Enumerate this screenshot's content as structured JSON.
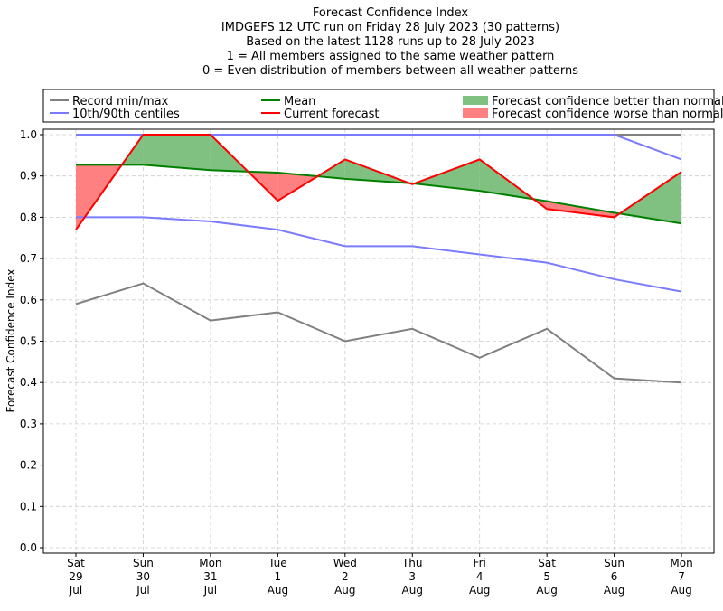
{
  "chart_data": {
    "type": "line",
    "title_lines": [
      "Forecast Confidence Index",
      "IMDGEFS 12 UTC run on Friday 28 July 2023 (30 patterns)",
      "Based on the latest 1128 runs up to 28 July 2023",
      "1 = All members assigned to the same weather pattern",
      "0 = Even distribution of members between all weather patterns"
    ],
    "ylabel": "Forecast Confidence Index",
    "ylim": [
      0,
      1
    ],
    "yticks": [
      "0.0",
      "0.1",
      "0.2",
      "0.3",
      "0.4",
      "0.5",
      "0.6",
      "0.7",
      "0.8",
      "0.9",
      "1.0"
    ],
    "categories": [
      [
        "Sat",
        "29",
        "Jul"
      ],
      [
        "Sun",
        "30",
        "Jul"
      ],
      [
        "Mon",
        "31",
        "Jul"
      ],
      [
        "Tue",
        "1",
        "Aug"
      ],
      [
        "Wed",
        "2",
        "Aug"
      ],
      [
        "Thu",
        "3",
        "Aug"
      ],
      [
        "Fri",
        "4",
        "Aug"
      ],
      [
        "Sat",
        "5",
        "Aug"
      ],
      [
        "Sun",
        "6",
        "Aug"
      ],
      [
        "Mon",
        "7",
        "Aug"
      ]
    ],
    "grid": true,
    "legend_placement": "top, outside",
    "legend": [
      {
        "label": "Record min/max",
        "color": "#808080",
        "kind": "line"
      },
      {
        "label": "10th/90th centiles",
        "color": "#7b7bff",
        "kind": "line"
      },
      {
        "label": "Mean",
        "color": "#008000",
        "kind": "line"
      },
      {
        "label": "Current forecast",
        "color": "#ff0000",
        "kind": "line"
      },
      {
        "label": "Forecast confidence better than normal",
        "color": "#80c080",
        "kind": "patch"
      },
      {
        "label": "Forecast confidence worse than normal",
        "color": "#ff8080",
        "kind": "patch"
      }
    ],
    "series": [
      {
        "name": "Record max",
        "color": "#808080",
        "values": [
          1,
          1,
          1,
          1,
          1,
          1,
          1,
          1,
          1,
          1
        ]
      },
      {
        "name": "Record min",
        "color": "#808080",
        "values": [
          0.59,
          0.64,
          0.55,
          0.57,
          0.5,
          0.53,
          0.46,
          0.53,
          0.41,
          0.4
        ]
      },
      {
        "name": "90th centile",
        "color": "#7b7bff",
        "values": [
          1,
          1,
          1,
          1,
          1,
          1,
          1,
          1,
          1,
          0.94
        ]
      },
      {
        "name": "10th centile",
        "color": "#7b7bff",
        "values": [
          0.8,
          0.8,
          0.79,
          0.77,
          0.73,
          0.73,
          0.71,
          0.69,
          0.65,
          0.62
        ]
      },
      {
        "name": "Mean",
        "color": "#008000",
        "values": [
          0.927,
          0.927,
          0.914,
          0.908,
          0.893,
          0.882,
          0.864,
          0.839,
          0.811,
          0.785
        ]
      },
      {
        "name": "Current forecast",
        "color": "#ff0000",
        "values": [
          0.77,
          1.0,
          1.0,
          0.84,
          0.94,
          0.88,
          0.94,
          0.82,
          0.8,
          0.91
        ]
      }
    ]
  }
}
